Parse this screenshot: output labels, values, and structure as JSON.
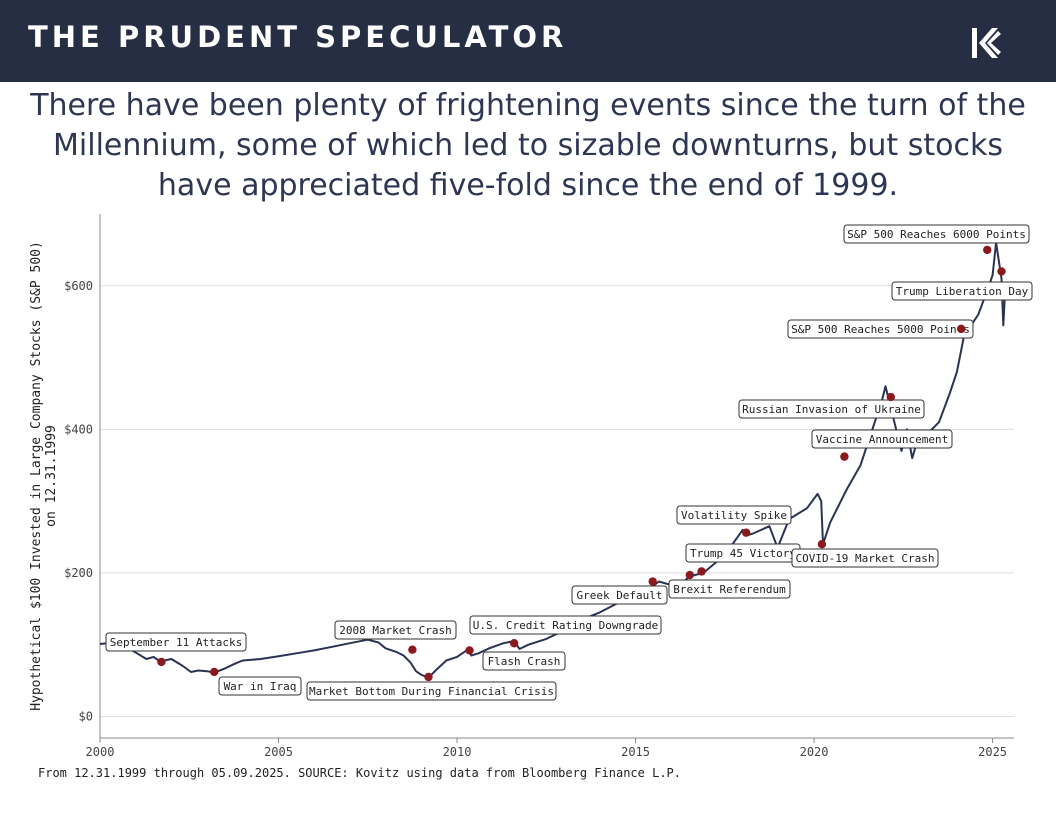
{
  "header": {
    "brand": "THE PRUDENT SPECULATOR",
    "logo_icon": "kovitz-k-logo-icon",
    "background": "#262e43"
  },
  "headline": "There have been plenty of frightening events since the turn of the Millennium, some of which led to sizable downturns, but stocks have appreciated five-fold since the end of 1999.",
  "footnote": "From 12.31.1999 through 05.09.2025. SOURCE: Kovitz using data from Bloomberg Finance L.P.",
  "chart_data": {
    "type": "line",
    "title": "",
    "xlabel": "",
    "ylabel": "Hypothetical $100 Invested in Large Company Stocks (S&P 500) on 12.31.1999",
    "xlim": [
      2000,
      2025.6
    ],
    "ylim": [
      -30,
      700
    ],
    "x_ticks": [
      2000,
      2005,
      2010,
      2015,
      2020,
      2025
    ],
    "x_tick_labels": [
      "2000",
      "2005",
      "2010",
      "2015",
      "2020",
      "2025"
    ],
    "y_ticks": [
      0,
      200,
      400,
      600
    ],
    "y_tick_labels": [
      "$0",
      "$200",
      "$400",
      "$600"
    ],
    "grid": "horizontal",
    "line_color": "#2a3352",
    "marker_color": "#8b1a1f",
    "series": [
      {
        "x": [
          2000.0,
          2000.2,
          2000.6,
          2000.9,
          2001.1,
          2001.3,
          2001.5,
          2001.7,
          2001.8,
          2002.0,
          2002.3,
          2002.55,
          2002.75,
          2003.0,
          2003.2,
          2003.5,
          2003.8,
          2004.0,
          2004.5,
          2005.0,
          2005.5,
          2006.0,
          2006.5,
          2007.0,
          2007.5,
          2007.8,
          2008.0,
          2008.3,
          2008.5,
          2008.7,
          2008.85,
          2009.0,
          2009.2,
          2009.4,
          2009.7,
          2010.0,
          2010.3,
          2010.4,
          2010.6,
          2010.9,
          2011.3,
          2011.6,
          2011.75,
          2012.0,
          2012.5,
          2013.0,
          2013.5,
          2014.0,
          2014.5,
          2015.0,
          2015.4,
          2015.65,
          2016.0,
          2016.1,
          2016.4,
          2016.5,
          2016.9,
          2017.5,
          2018.0,
          2018.1,
          2018.3,
          2018.75,
          2018.98,
          2019.3,
          2019.8,
          2020.1,
          2020.2,
          2020.25,
          2020.45,
          2020.9,
          2021.3,
          2021.9,
          2022.0,
          2022.2,
          2022.45,
          2022.6,
          2022.75,
          2022.9,
          2023.1,
          2023.5,
          2023.8,
          2024.0,
          2024.2,
          2024.6,
          2024.9,
          2025.0,
          2025.1,
          2025.25,
          2025.3,
          2025.36
        ],
        "y": [
          101,
          102,
          100,
          92,
          86,
          80,
          83,
          76,
          78,
          80,
          71,
          62,
          64,
          63,
          61,
          67,
          74,
          78,
          80,
          84,
          88,
          92,
          97,
          102,
          107,
          103,
          95,
          90,
          85,
          75,
          63,
          58,
          54,
          64,
          78,
          83,
          93,
          85,
          88,
          95,
          102,
          105,
          94,
          100,
          108,
          120,
          135,
          145,
          158,
          168,
          178,
          188,
          183,
          172,
          190,
          195,
          200,
          225,
          260,
          252,
          255,
          265,
          235,
          275,
          290,
          310,
          300,
          240,
          270,
          315,
          350,
          440,
          460,
          420,
          370,
          400,
          360,
          385,
          390,
          410,
          450,
          480,
          530,
          560,
          600,
          615,
          660,
          610,
          545,
          600
        ]
      }
    ],
    "events": [
      {
        "label": "September 11 Attacks",
        "x": 2001.72,
        "y": 76
      },
      {
        "label": "War in Iraq",
        "x": 2003.2,
        "y": 62
      },
      {
        "label": "2008 Market Crash",
        "x": 2008.75,
        "y": 93
      },
      {
        "label": "Market Bottom During Financial Crisis",
        "x": 2009.2,
        "y": 55
      },
      {
        "label": "U.S. Credit Rating Downgrade",
        "x": 2010.35,
        "y": 92
      },
      {
        "label": "Flash Crash",
        "x": 2011.6,
        "y": 102
      },
      {
        "label": "Greek Default",
        "x": 2015.48,
        "y": 188
      },
      {
        "label": "Brexit Referendum",
        "x": 2016.52,
        "y": 197
      },
      {
        "label": "Trump 45 Victory",
        "x": 2016.85,
        "y": 202
      },
      {
        "label": "Volatility Spike",
        "x": 2018.1,
        "y": 256
      },
      {
        "label": "COVID-19 Market Crash",
        "x": 2020.22,
        "y": 240
      },
      {
        "label": "Vaccine Announcement",
        "x": 2020.85,
        "y": 362
      },
      {
        "label": "Russian Invasion of Ukraine",
        "x": 2022.15,
        "y": 445
      },
      {
        "label": "S&P 500 Reaches 5000 Points",
        "x": 2024.12,
        "y": 540
      },
      {
        "label": "S&P 500 Reaches 6000 Points",
        "x": 2024.85,
        "y": 650
      },
      {
        "label": "Trump Liberation Day",
        "x": 2025.25,
        "y": 620
      }
    ]
  }
}
